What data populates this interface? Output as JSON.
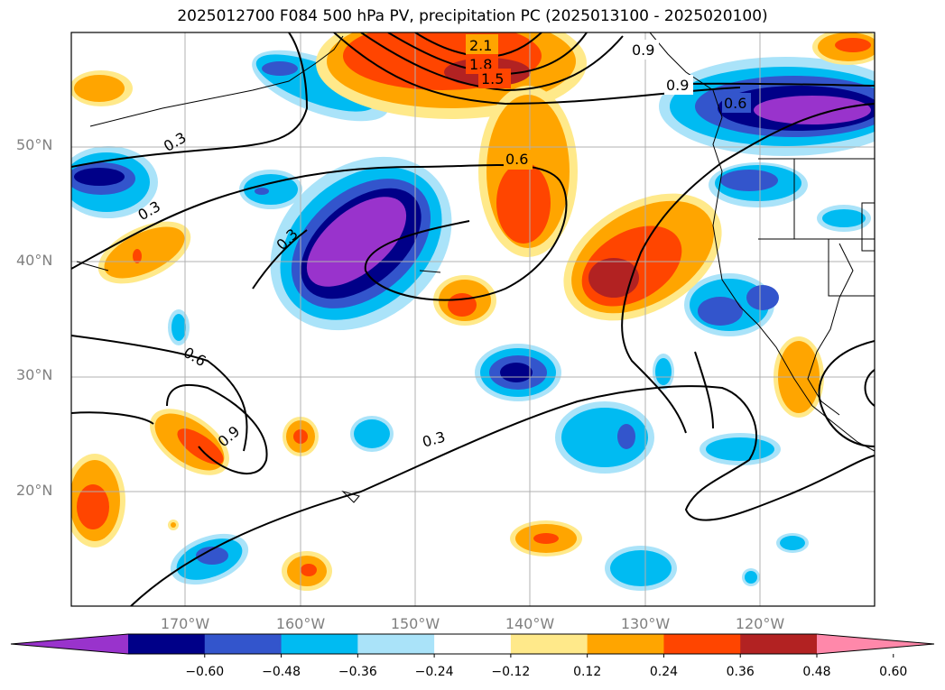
{
  "title": "2025012700 F084 500 hPa PV, precipitation PC (2025013100 - 2025020100)",
  "lat_labels": [
    "50°N",
    "40°N",
    "30°N",
    "20°N"
  ],
  "lon_labels": [
    "170°W",
    "160°W",
    "150°W",
    "140°W",
    "130°W",
    "120°W"
  ],
  "contour_labels": [
    "2.1",
    "1.8",
    "1.5",
    "0.9",
    "0.9",
    "0.6",
    "0.6",
    "0.3",
    "0.3",
    "0.3",
    "0.6",
    "0.9",
    "0.3"
  ],
  "colorbar": {
    "ticks": [
      "−0.60",
      "−0.48",
      "−0.36",
      "−0.24",
      "−0.12",
      "0.12",
      "0.24",
      "0.36",
      "0.48",
      "0.60"
    ],
    "colors": [
      "#9933cc",
      "#000088",
      "#3355cc",
      "#00bbf2",
      "#aae3f9",
      "#ffffff",
      "#ffe98a",
      "#ffa500",
      "#ff4500",
      "#b22222",
      "#ff88aa"
    ]
  },
  "colors": {
    "strong_neg": "#9933cc",
    "neg_48": "#000088",
    "neg_36": "#3355cc",
    "neg_24": "#00bbf2",
    "neg_12": "#aae3f9",
    "pos_12": "#ffe98a",
    "pos_24": "#ffa500",
    "pos_36": "#ff4500",
    "pos_48": "#b22222",
    "strong_pos": "#ff88aa"
  }
}
